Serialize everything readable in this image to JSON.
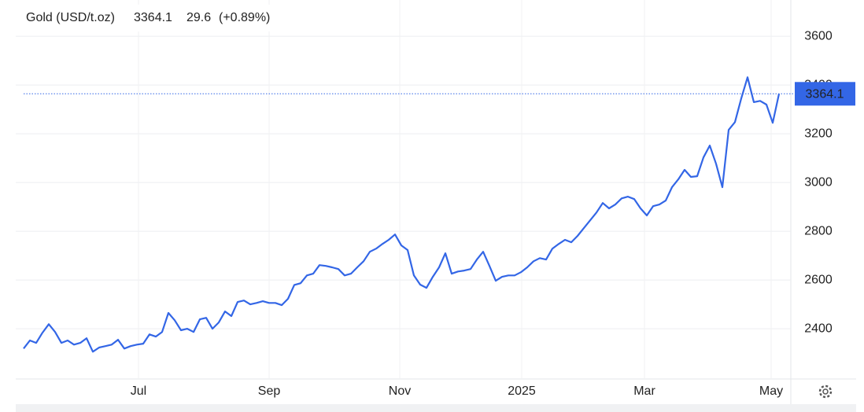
{
  "chart_data": {
    "type": "line",
    "title": "Gold (USD/t.oz)",
    "change": "29.6",
    "change_pct": "(+0.89%)",
    "color": "#3366e6",
    "change_color": "#2eaa44",
    "grid": true,
    "y_axis_side": "right",
    "values": [
      2319,
      2352,
      2342,
      2384,
      2419,
      2387,
      2342,
      2352,
      2335,
      2342,
      2361,
      2306,
      2323,
      2329,
      2335,
      2355,
      2319,
      2329,
      2335,
      2339,
      2377,
      2368,
      2387,
      2465,
      2435,
      2394,
      2400,
      2387,
      2439,
      2445,
      2400,
      2426,
      2471,
      2452,
      2510,
      2516,
      2500,
      2506,
      2513,
      2506,
      2506,
      2497,
      2523,
      2580,
      2587,
      2619,
      2626,
      2661,
      2658,
      2652,
      2645,
      2619,
      2626,
      2652,
      2677,
      2716,
      2729,
      2748,
      2765,
      2787,
      2742,
      2723,
      2619,
      2581,
      2568,
      2613,
      2652,
      2710,
      2626,
      2635,
      2639,
      2645,
      2684,
      2716,
      2658,
      2597,
      2613,
      2619,
      2619,
      2632,
      2652,
      2677,
      2690,
      2684,
      2729,
      2748,
      2765,
      2755,
      2781,
      2813,
      2845,
      2877,
      2916,
      2894,
      2910,
      2935,
      2942,
      2932,
      2894,
      2865,
      2903,
      2910,
      2926,
      2981,
      3013,
      3052,
      3023,
      3026,
      3103,
      3152,
      3077,
      2981,
      3216,
      3248,
      3345,
      3432,
      3330,
      3335,
      3320,
      3245,
      3364.1
    ],
    "xlim": [
      0,
      120
    ],
    "xticks": [
      {
        "value": 18.25,
        "label": "Jul"
      },
      {
        "value": 39,
        "label": "Sep"
      },
      {
        "value": 59.75,
        "label": "Nov"
      },
      {
        "value": 79.125,
        "label": "2025"
      },
      {
        "value": 98.625,
        "label": "Mar"
      },
      {
        "value": 118.75,
        "label": "May"
      }
    ],
    "ylim": [
      2194,
      3749
    ],
    "yticks": [
      2400,
      2600,
      2800,
      3000,
      3200,
      3400,
      3600
    ]
  }
}
